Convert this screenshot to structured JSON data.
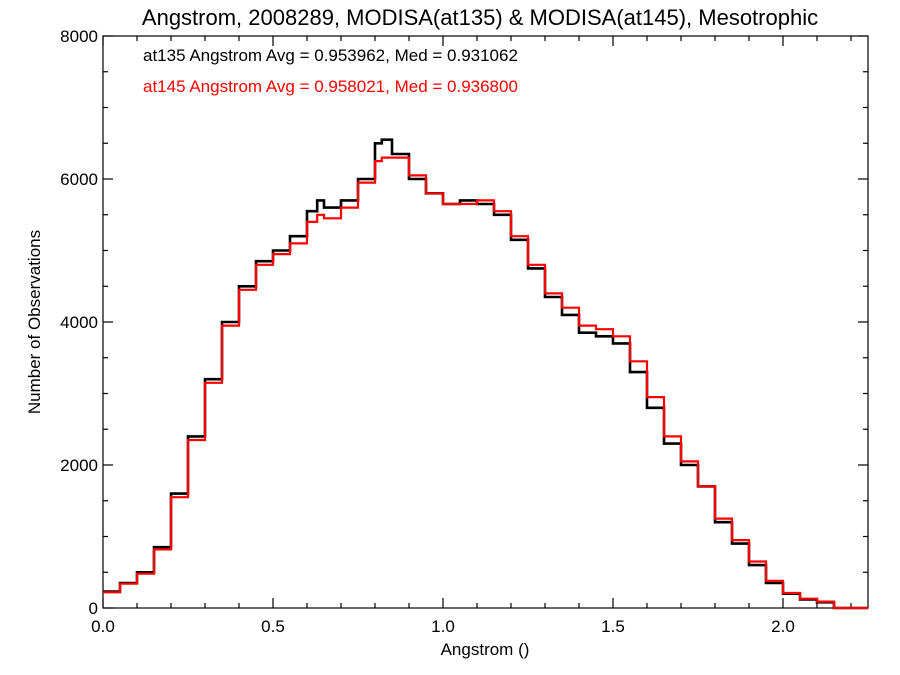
{
  "chart_data": {
    "type": "line",
    "title": "Angstrom, 2008289, MODISA(at135) & MODISA(at145), Mesotrophic",
    "xlabel": "Angstrom ()",
    "ylabel": "Number of Observations",
    "xlim": [
      0.0,
      2.25
    ],
    "ylim": [
      0,
      8000
    ],
    "xticks": [
      0.0,
      0.5,
      1.0,
      1.5,
      2.0
    ],
    "xtick_labels": [
      "0.0",
      "0.5",
      "1.0",
      "1.5",
      "2.0"
    ],
    "yticks": [
      0,
      2000,
      4000,
      6000,
      8000
    ],
    "ytick_labels": [
      "0",
      "2000",
      "4000",
      "6000",
      "8000"
    ],
    "grid": false,
    "legend_position": "top-left",
    "step": true,
    "series": [
      {
        "name": "at135",
        "color": "#000000",
        "legend_text": "at135 Angstrom Avg = 0.953962, Med = 0.931062",
        "x": [
          0.0,
          0.05,
          0.1,
          0.15,
          0.2,
          0.25,
          0.3,
          0.35,
          0.4,
          0.45,
          0.5,
          0.55,
          0.6,
          0.63,
          0.65,
          0.7,
          0.75,
          0.8,
          0.82,
          0.85,
          0.9,
          0.95,
          1.0,
          1.05,
          1.1,
          1.15,
          1.2,
          1.25,
          1.3,
          1.35,
          1.4,
          1.45,
          1.5,
          1.55,
          1.6,
          1.65,
          1.7,
          1.75,
          1.8,
          1.85,
          1.9,
          1.95,
          2.0,
          2.05,
          2.1,
          2.15,
          2.2,
          2.25
        ],
        "y": [
          230,
          350,
          500,
          850,
          1600,
          2400,
          3200,
          4000,
          4500,
          4850,
          5000,
          5200,
          5550,
          5700,
          5600,
          5700,
          6000,
          6500,
          6550,
          6350,
          6000,
          5800,
          5650,
          5700,
          5650,
          5500,
          5150,
          4750,
          4350,
          4100,
          3850,
          3800,
          3700,
          3300,
          2800,
          2300,
          2000,
          1700,
          1200,
          900,
          600,
          350,
          200,
          120,
          80,
          0,
          0,
          0
        ]
      },
      {
        "name": "at145",
        "color": "#ff0000",
        "legend_text": "at145 Angstrom Avg = 0.958021, Med = 0.936800",
        "x": [
          0.0,
          0.05,
          0.1,
          0.15,
          0.2,
          0.25,
          0.3,
          0.35,
          0.4,
          0.45,
          0.5,
          0.55,
          0.6,
          0.63,
          0.65,
          0.7,
          0.75,
          0.8,
          0.82,
          0.85,
          0.9,
          0.95,
          1.0,
          1.05,
          1.1,
          1.15,
          1.2,
          1.25,
          1.3,
          1.35,
          1.4,
          1.45,
          1.5,
          1.55,
          1.6,
          1.65,
          1.7,
          1.75,
          1.8,
          1.85,
          1.9,
          1.95,
          2.0,
          2.05,
          2.1,
          2.15,
          2.2,
          2.25
        ],
        "y": [
          220,
          340,
          480,
          820,
          1550,
          2350,
          3150,
          3950,
          4450,
          4800,
          4950,
          5100,
          5400,
          5500,
          5450,
          5600,
          5950,
          6250,
          6300,
          6300,
          6050,
          5800,
          5650,
          5650,
          5700,
          5550,
          5200,
          4800,
          4400,
          4200,
          3950,
          3900,
          3800,
          3450,
          2950,
          2400,
          2050,
          1700,
          1250,
          950,
          650,
          380,
          210,
          130,
          90,
          0,
          0,
          0
        ]
      }
    ]
  }
}
